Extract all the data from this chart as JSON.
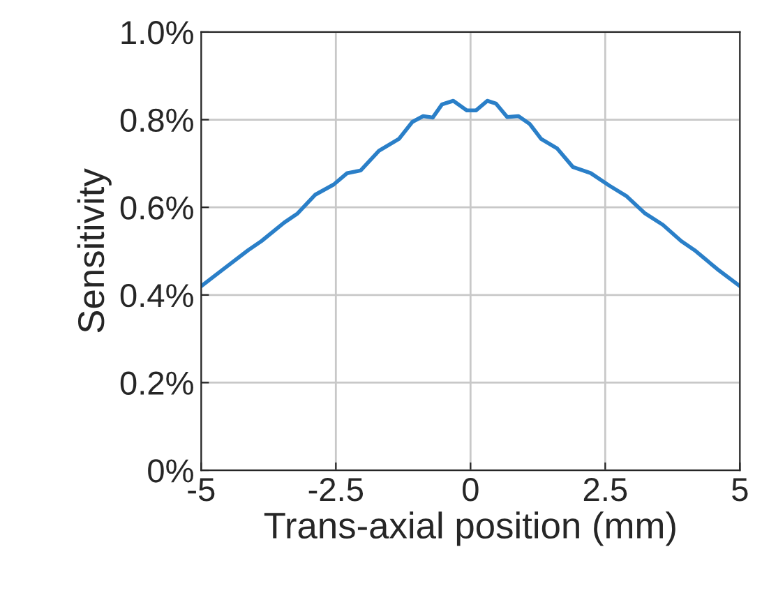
{
  "chart_data": {
    "type": "line",
    "xlabel": "Trans-axial position (mm)",
    "ylabel": "Sensitivity",
    "xlim": [
      -5,
      5
    ],
    "xticks": [
      -5,
      -2.5,
      0,
      2.5,
      5
    ],
    "ylim": [
      0,
      1.0
    ],
    "yticks": [
      {
        "value": 0,
        "label": "0%"
      },
      {
        "value": 0.2,
        "label": "0.2%"
      },
      {
        "value": 0.4,
        "label": "0.4%"
      },
      {
        "value": 0.6,
        "label": "0.6%"
      },
      {
        "value": 0.8,
        "label": "0.8%"
      },
      {
        "value": 1.0,
        "label": "1.0%"
      }
    ],
    "grid": true,
    "marker": "none",
    "line_style": "solid",
    "series": [
      {
        "color": "#2a7fc8",
        "x": [
          -5,
          -4.64,
          -4.13,
          -3.88,
          -3.46,
          -3.21,
          -2.88,
          -2.54,
          -2.29,
          -2.04,
          -1.7,
          -1.33,
          -1.08,
          -0.88,
          -0.7,
          -0.53,
          -0.32,
          -0.07,
          0.1,
          0.31,
          0.47,
          0.68,
          0.89,
          1.1,
          1.31,
          1.61,
          1.9,
          2.23,
          2.57,
          2.9,
          3.24,
          3.57,
          3.91,
          4.16,
          4.58,
          5
        ],
        "values": [
          0.42,
          0.454,
          0.502,
          0.523,
          0.565,
          0.586,
          0.629,
          0.652,
          0.678,
          0.684,
          0.729,
          0.756,
          0.795,
          0.808,
          0.805,
          0.835,
          0.843,
          0.821,
          0.821,
          0.843,
          0.837,
          0.806,
          0.808,
          0.79,
          0.756,
          0.734,
          0.692,
          0.678,
          0.65,
          0.625,
          0.586,
          0.56,
          0.523,
          0.502,
          0.459,
          0.42
        ]
      }
    ]
  }
}
